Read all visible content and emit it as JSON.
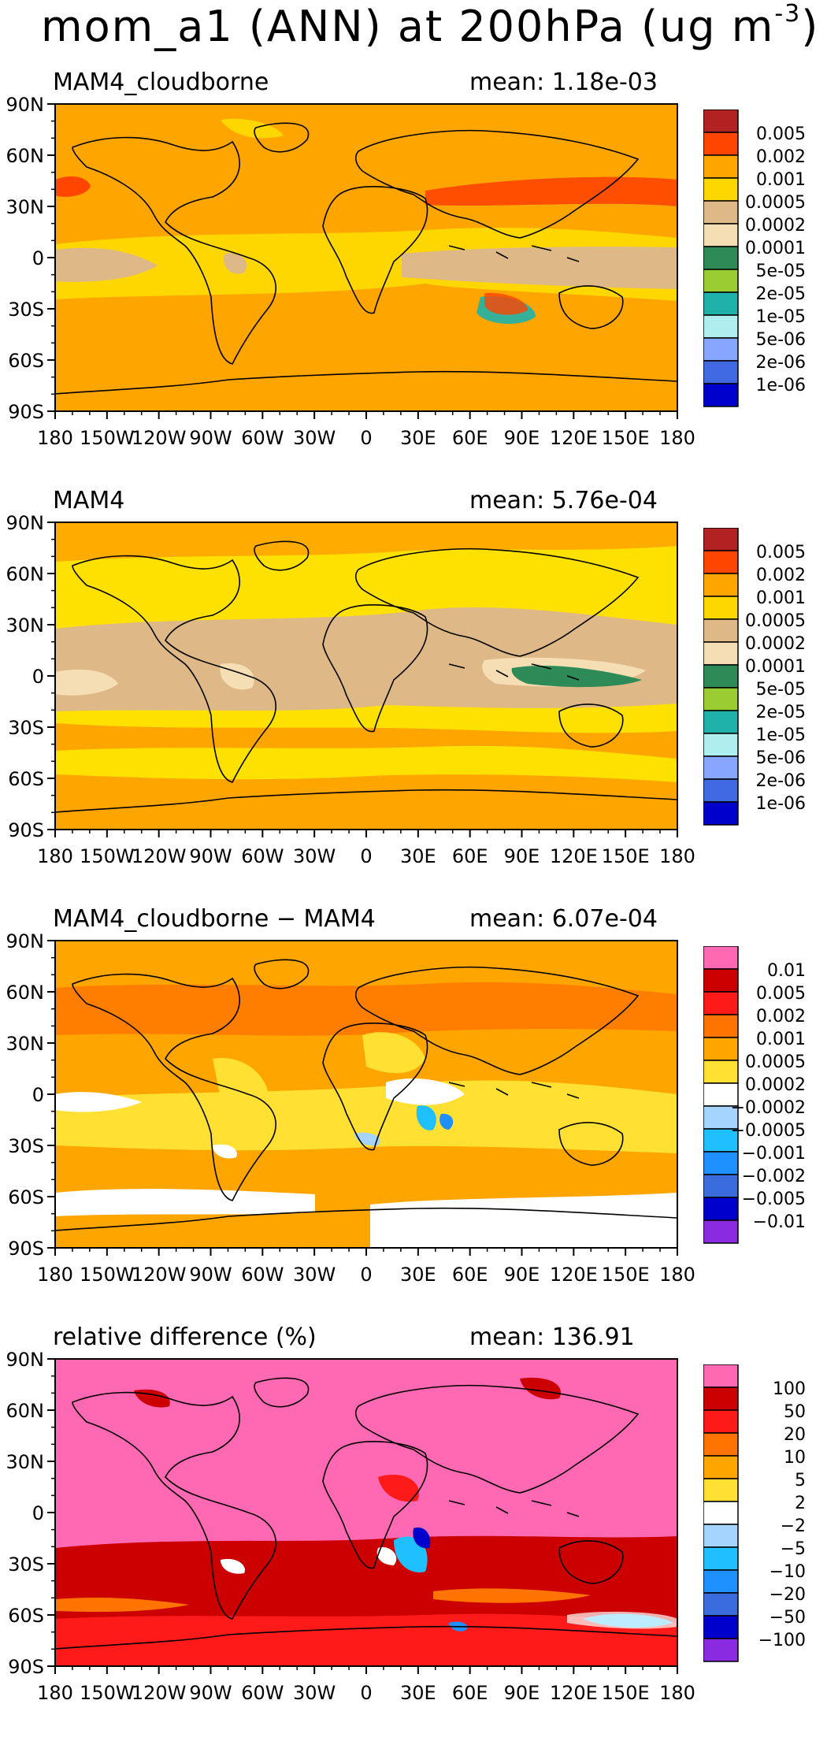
{
  "title": {
    "main": "mom_a1 (ANN) at 200hPa (ug m",
    "exp": "-3",
    "close": ")"
  },
  "axes": {
    "lat_labels": [
      "90N",
      "60N",
      "30N",
      "0",
      "30S",
      "60S",
      "90S"
    ],
    "lon_labels": [
      "180",
      "150W",
      "120W",
      "90W",
      "60W",
      "30W",
      "0",
      "30E",
      "60E",
      "90E",
      "120E",
      "150E",
      "180"
    ]
  },
  "panels": [
    {
      "id": "cloudborne",
      "title": "MAM4_cloudborne",
      "mean": "mean: 1.18e-03",
      "background": "#ffa500",
      "colorbar": {
        "colors": [
          "#b22222",
          "#ff4500",
          "#ffa500",
          "#ffd700",
          "#deb887",
          "#f5deb3",
          "#2e8b57",
          "#9acd32",
          "#20b2aa",
          "#afeeee",
          "#87a6ff",
          "#4169e1",
          "#0000cd"
        ],
        "labels": [
          "0.005",
          "0.002",
          "0.001",
          "0.0005",
          "0.0002",
          "0.0001",
          "5e-05",
          "2e-05",
          "1e-05",
          "5e-06",
          "2e-06",
          "1e-06"
        ]
      }
    },
    {
      "id": "mam4",
      "title": "MAM4",
      "mean": "mean: 5.76e-04",
      "background": "#ffe100",
      "colorbar": {
        "colors": [
          "#b22222",
          "#ff4500",
          "#ffa500",
          "#ffd700",
          "#deb887",
          "#f5deb3",
          "#2e8b57",
          "#9acd32",
          "#20b2aa",
          "#afeeee",
          "#87a6ff",
          "#4169e1",
          "#0000cd"
        ],
        "labels": [
          "0.005",
          "0.002",
          "0.001",
          "0.0005",
          "0.0002",
          "0.0001",
          "5e-05",
          "2e-05",
          "1e-05",
          "5e-06",
          "2e-06",
          "1e-06"
        ]
      }
    },
    {
      "id": "difference",
      "title": "MAM4_cloudborne − MAM4",
      "mean": "mean: 6.07e-04",
      "background": "#ffa500",
      "colorbar": {
        "colors": [
          "#ff69b4",
          "#cc0000",
          "#ff1a1a",
          "#ff7400",
          "#ffa500",
          "#ffe033",
          "#ffffff",
          "#a4d4ff",
          "#1ec0ff",
          "#1e90ff",
          "#3a6cdd",
          "#0000cd",
          "#8a2be2"
        ],
        "labels": [
          "0.01",
          "0.005",
          "0.002",
          "0.001",
          "0.0005",
          "0.0002",
          "−0.0002",
          "−0.0005",
          "−0.001",
          "−0.002",
          "−0.005",
          "−0.01"
        ]
      }
    },
    {
      "id": "reldiff",
      "title": "relative difference (%)",
      "mean": "mean: 136.91",
      "background": "#ff69b4",
      "colorbar": {
        "colors": [
          "#ff69b4",
          "#cc0000",
          "#ff1a1a",
          "#ff7400",
          "#ffa500",
          "#ffe033",
          "#ffffff",
          "#a4d4ff",
          "#1ec0ff",
          "#1e90ff",
          "#3a6cdd",
          "#0000cd",
          "#8a2be2"
        ],
        "labels": [
          "100",
          "50",
          "20",
          "10",
          "5",
          "2",
          "−2",
          "−5",
          "−10",
          "−20",
          "−50",
          "−100"
        ]
      }
    }
  ]
}
